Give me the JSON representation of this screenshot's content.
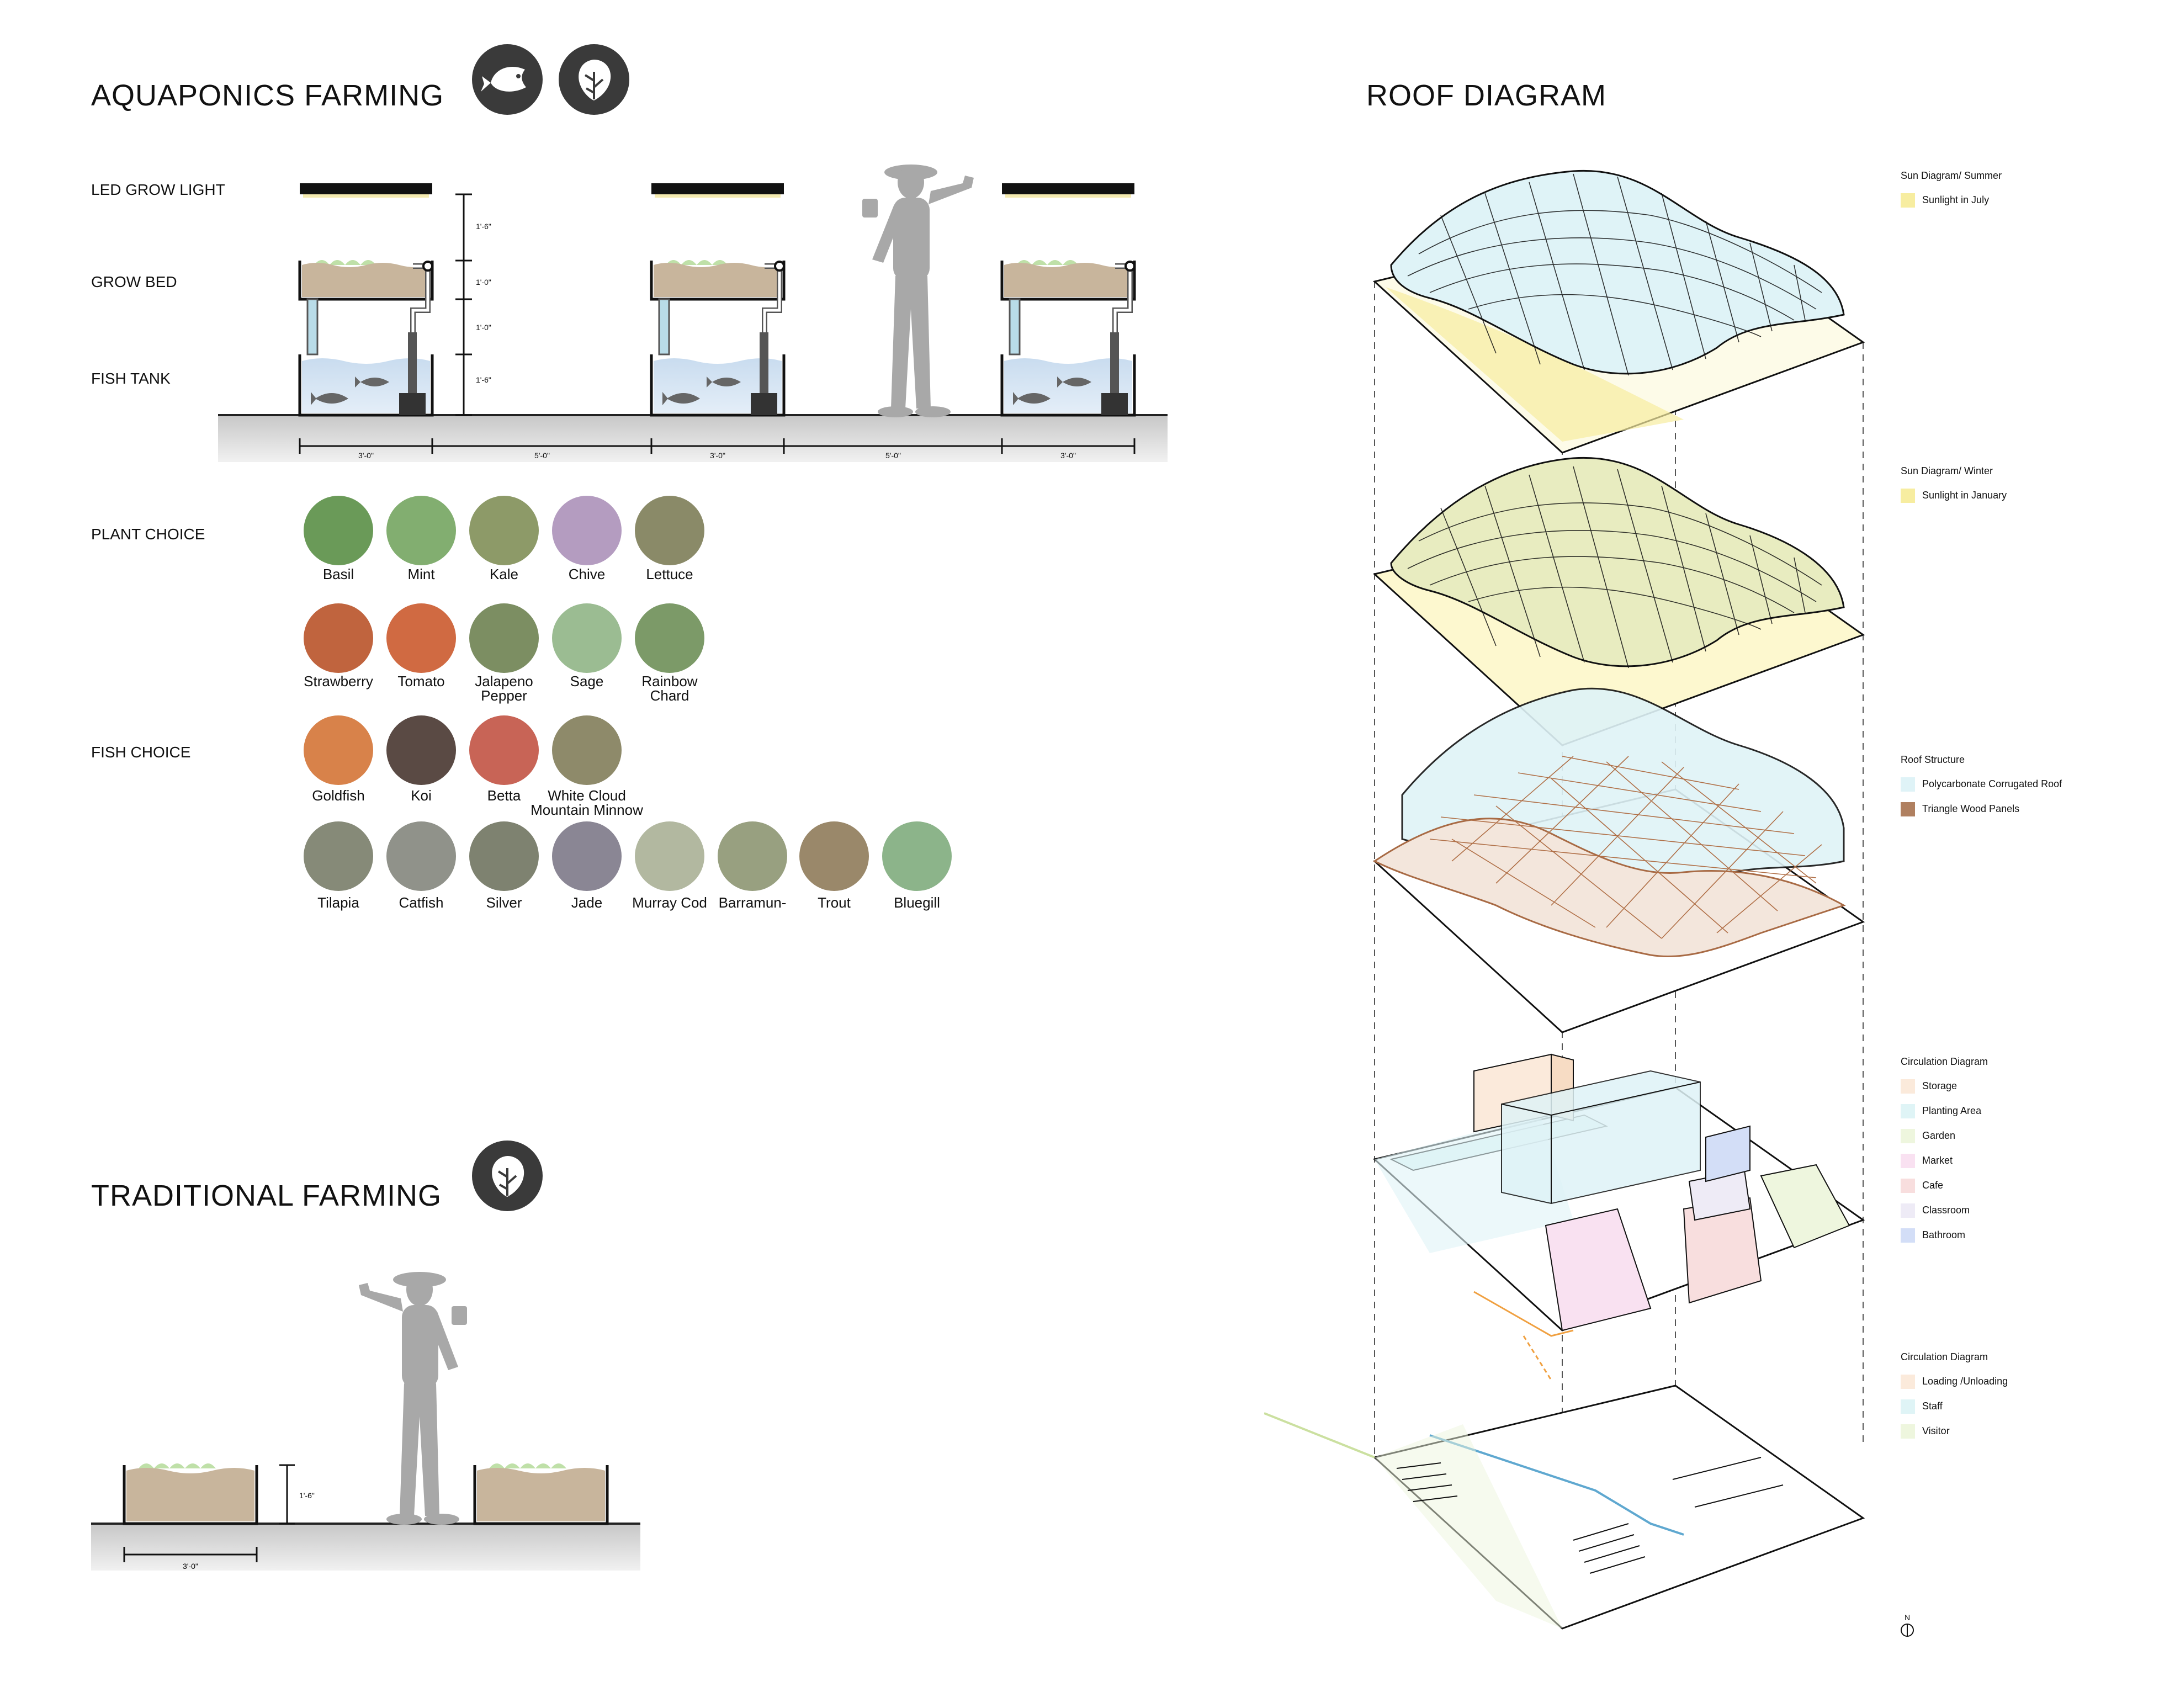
{
  "aquaponics": {
    "title": "AQUAPONICS FARMING",
    "icons": [
      "fish-icon",
      "lettuce-icon"
    ],
    "row_labels": {
      "led": "LED GROW LIGHT",
      "bed": "GROW BED",
      "tank": "FISH TANK"
    },
    "vertical_dims": [
      "1'-6\"",
      "1'-0\"",
      "1'-0\"",
      "1'-6\""
    ],
    "horizontal_dims": [
      "3'-0\"",
      "5'-0\"",
      "3'-0\"",
      "5'-0\"",
      "3'-0\""
    ]
  },
  "plant_choice": {
    "label": "PLANT CHOICE",
    "row1": [
      "Basil",
      "Mint",
      "Kale",
      "Chive",
      "Lettuce"
    ],
    "row2": [
      "Strawberry",
      "Tomato",
      "Jalapeno Pepper",
      "Sage",
      "Rainbow Chard"
    ]
  },
  "fish_choice": {
    "label": "FISH CHOICE",
    "row1": [
      "Goldfish",
      "Koi",
      "Betta",
      "White Cloud Mountain Minnow"
    ],
    "row2": [
      "Tilapia",
      "Catfish",
      "Silver",
      "Jade",
      "Murray Cod",
      "Barramun-",
      "Trout",
      "Bluegill"
    ]
  },
  "traditional": {
    "title": "TRADITIONAL FARMING",
    "icons": [
      "lettuce-icon"
    ],
    "height_dim": "1'-6\"",
    "width_dim": "3'-0\""
  },
  "roof": {
    "title": "ROOF DIAGRAM",
    "legends": [
      {
        "title": "Sun Diagram/ Summer",
        "items": [
          {
            "label": "Sunlight in July",
            "color": "#f7eda0"
          }
        ]
      },
      {
        "title": "Sun Diagram/ Winter",
        "items": [
          {
            "label": "Sunlight in January",
            "color": "#f7eda0"
          }
        ]
      },
      {
        "title": "Roof Structure",
        "items": [
          {
            "label": "Polycarbonate Corrugated Roof",
            "color": "#dff3f7"
          },
          {
            "label": "Triangle Wood Panels",
            "color": "#b08060"
          }
        ]
      },
      {
        "title": "Circulation Diagram",
        "items": [
          {
            "label": "Storage",
            "color": "#fbeadb"
          },
          {
            "label": "Planting Area",
            "color": "#dff4f6"
          },
          {
            "label": "Garden",
            "color": "#eef6de"
          },
          {
            "label": "Market",
            "color": "#f9e1f1"
          },
          {
            "label": "Cafe",
            "color": "#f8dede"
          },
          {
            "label": "Classroom",
            "color": "#eeebf6"
          },
          {
            "label": "Bathroom",
            "color": "#d3def7"
          }
        ]
      },
      {
        "title": "Circulation Diagram",
        "items": [
          {
            "label": "Loading /Unloading",
            "color": "#fbeadb"
          },
          {
            "label": "Staff",
            "color": "#dff4f6"
          },
          {
            "label": "Visitor",
            "color": "#eef6de"
          }
        ]
      }
    ],
    "north_label": "N"
  }
}
